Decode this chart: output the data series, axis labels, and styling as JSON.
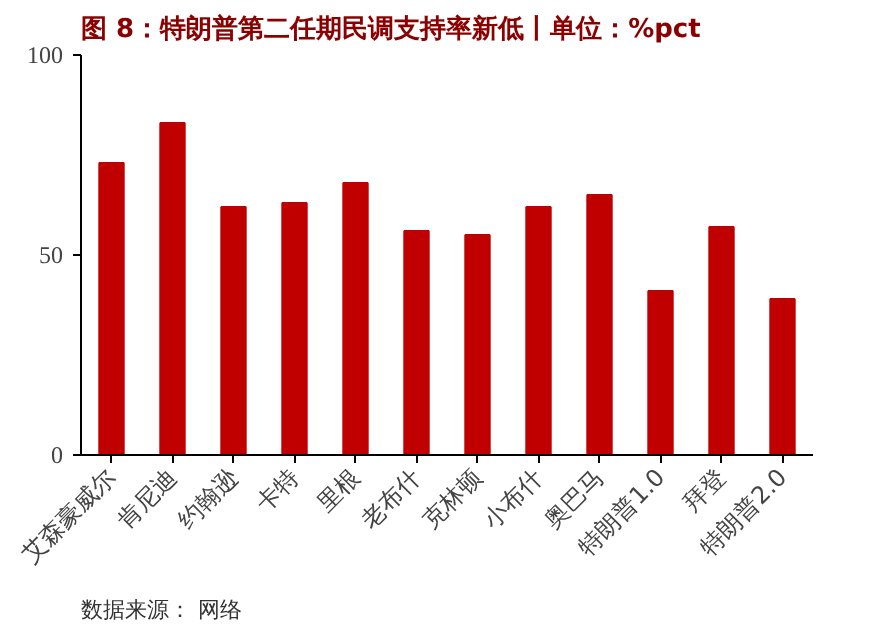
{
  "chart_data": {
    "type": "bar",
    "title": "图 8：特朗普第二任期民调支持率新低丨单位：%pct",
    "categories": [
      "艾森豪威尔",
      "肯尼迪",
      "约翰逊",
      "卡特",
      "里根",
      "老布什",
      "克林顿",
      "小布什",
      "奥巴马",
      "特朗普1.0",
      "拜登",
      "特朗普2.0"
    ],
    "values": [
      73,
      83,
      62,
      63,
      68,
      56,
      55,
      62,
      65,
      41,
      57,
      39
    ],
    "color": "#c00000",
    "ylim": [
      0,
      100
    ],
    "yticks": [
      0,
      50,
      100
    ],
    "grid": false,
    "annotations": [
      "数据来源： 网络"
    ]
  }
}
